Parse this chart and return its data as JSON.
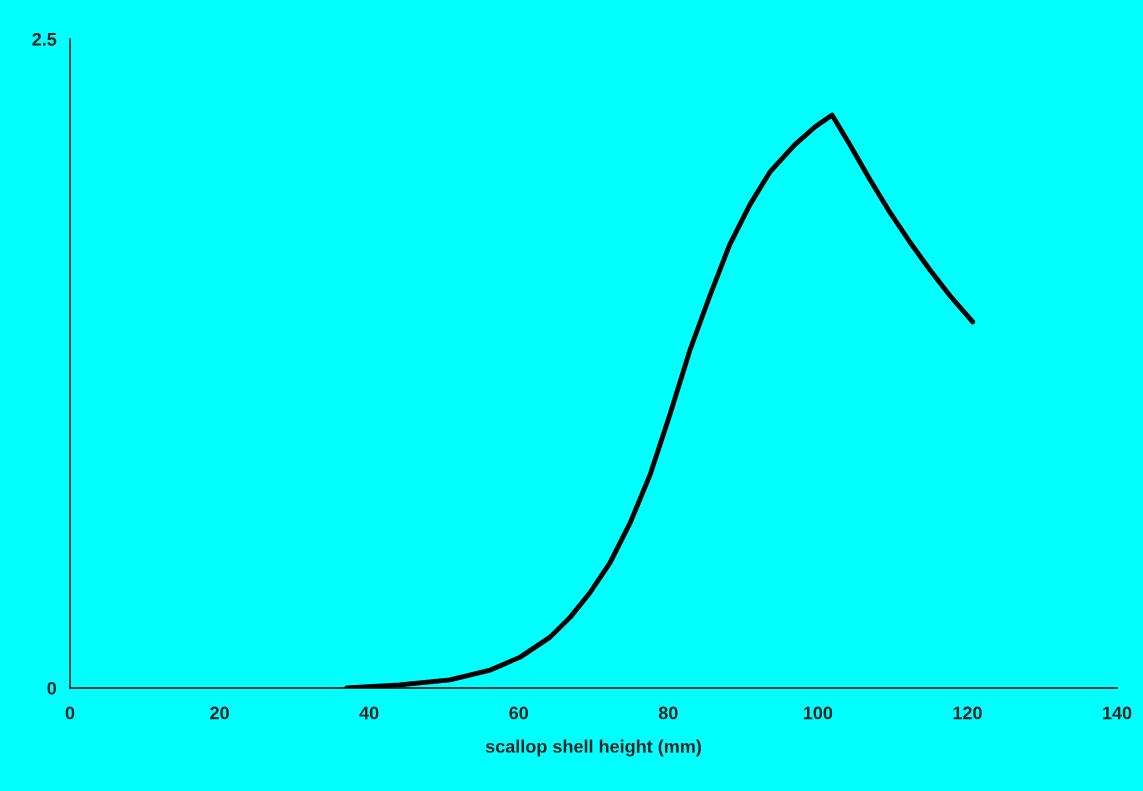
{
  "chart_data": {
    "type": "line",
    "xlabel": "scallop shell height (mm)",
    "xlim": [
      0,
      140
    ],
    "xticks": [
      0,
      20,
      40,
      60,
      80,
      100,
      120,
      140
    ],
    "ylim": [
      0,
      2.5
    ],
    "yticks": [
      0,
      2.5
    ],
    "grid": false,
    "legend": false,
    "series": [
      {
        "color": "#000000",
        "x": [
          37.0,
          44.1,
          50.8,
          56.2,
          60.2,
          64.2,
          66.9,
          69.5,
          72.2,
          74.9,
          77.6,
          80.2,
          82.9,
          85.6,
          88.2,
          90.9,
          93.6,
          96.9,
          99.6,
          101.9,
          104.3,
          107.0,
          109.6,
          112.3,
          115.0,
          117.7,
          120.7
        ],
        "values": [
          0,
          0.012,
          0.031,
          0.069,
          0.119,
          0.196,
          0.273,
          0.366,
          0.482,
          0.636,
          0.824,
          1.052,
          1.302,
          1.514,
          1.707,
          1.861,
          1.988,
          2.092,
          2.161,
          2.207,
          2.092,
          1.957,
          1.834,
          1.718,
          1.61,
          1.51,
          1.41
        ]
      }
    ]
  }
}
